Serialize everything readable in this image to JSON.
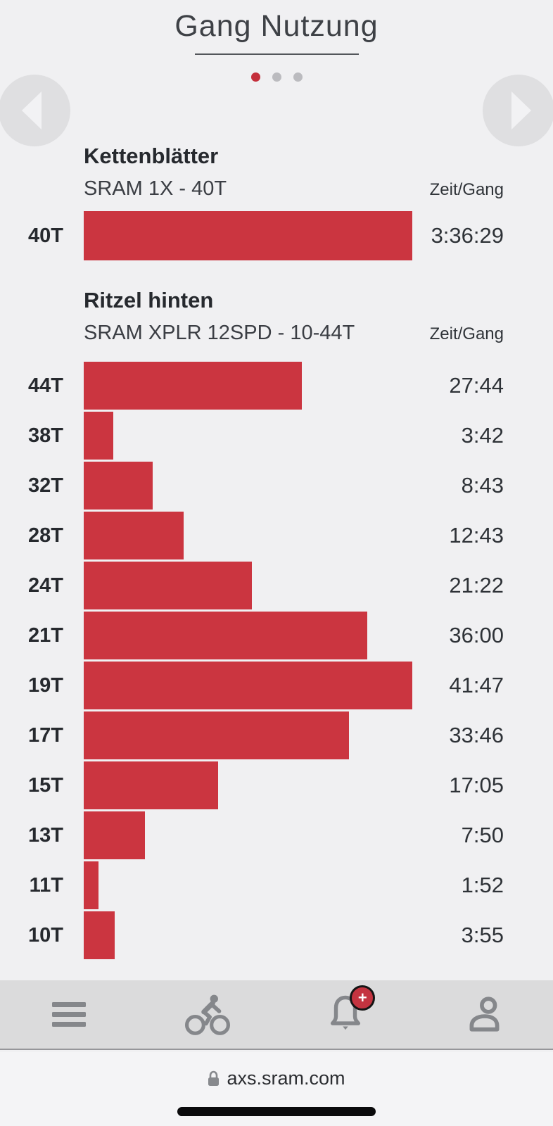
{
  "title": "Gang Nutzung",
  "carousel": {
    "total_dots": 3,
    "active_dot": 1
  },
  "sections": [
    {
      "heading": "Kettenblätter",
      "subtitle": "SRAM 1X - 40T",
      "value_header": "Zeit/Gang",
      "bars": [
        {
          "label": "40T",
          "value": "3:36:29",
          "pct": 100
        }
      ]
    },
    {
      "heading": "Ritzel hinten",
      "subtitle": "SRAM XPLR 12SPD - 10-44T",
      "value_header": "Zeit/Gang",
      "bars": [
        {
          "label": "44T",
          "value": "27:44",
          "pct": 66.4
        },
        {
          "label": "38T",
          "value": "3:42",
          "pct": 8.9
        },
        {
          "label": "32T",
          "value": "8:43",
          "pct": 20.9
        },
        {
          "label": "28T",
          "value": "12:43",
          "pct": 30.4
        },
        {
          "label": "24T",
          "value": "21:22",
          "pct": 51.1
        },
        {
          "label": "21T",
          "value": "36:00",
          "pct": 86.2
        },
        {
          "label": "19T",
          "value": "41:47",
          "pct": 100
        },
        {
          "label": "17T",
          "value": "33:46",
          "pct": 80.8
        },
        {
          "label": "15T",
          "value": "17:05",
          "pct": 40.9
        },
        {
          "label": "13T",
          "value": "7:50",
          "pct": 18.7
        },
        {
          "label": "11T",
          "value": "1:52",
          "pct": 4.5
        },
        {
          "label": "10T",
          "value": "3:55",
          "pct": 9.4
        }
      ]
    }
  ],
  "chart_data": [
    {
      "type": "bar",
      "orientation": "horizontal",
      "title": "Kettenblätter",
      "subtitle": "SRAM 1X - 40T",
      "value_column_label": "Zeit/Gang",
      "categories": [
        "40T"
      ],
      "values_time": [
        "3:36:29"
      ],
      "values_seconds": [
        12989
      ]
    },
    {
      "type": "bar",
      "orientation": "horizontal",
      "title": "Ritzel hinten",
      "subtitle": "SRAM XPLR 12SPD - 10-44T",
      "value_column_label": "Zeit/Gang",
      "categories": [
        "44T",
        "38T",
        "32T",
        "28T",
        "24T",
        "21T",
        "19T",
        "17T",
        "15T",
        "13T",
        "11T",
        "10T"
      ],
      "values_time": [
        "27:44",
        "3:42",
        "8:43",
        "12:43",
        "21:22",
        "36:00",
        "41:47",
        "33:46",
        "17:05",
        "7:50",
        "1:52",
        "3:55"
      ],
      "values_seconds": [
        1664,
        222,
        523,
        763,
        1282,
        2160,
        2507,
        2026,
        1025,
        470,
        112,
        235
      ],
      "x_max_seconds": 2507,
      "grid": false,
      "legend": false
    }
  ],
  "bottom_nav": {
    "items": [
      {
        "icon": "menu-icon"
      },
      {
        "icon": "bike-icon"
      },
      {
        "icon": "bell-icon",
        "badge": "+"
      },
      {
        "icon": "profile-icon"
      }
    ]
  },
  "browser": {
    "url": "axs.sram.com"
  },
  "colors": {
    "page_bg": "#F0F0F2",
    "bar_red": "#CB3540",
    "accent_red": "#C42F3B",
    "nav_bg": "#DBDBDC",
    "icon_gray": "#85878B",
    "text_dark": "#26292E"
  }
}
